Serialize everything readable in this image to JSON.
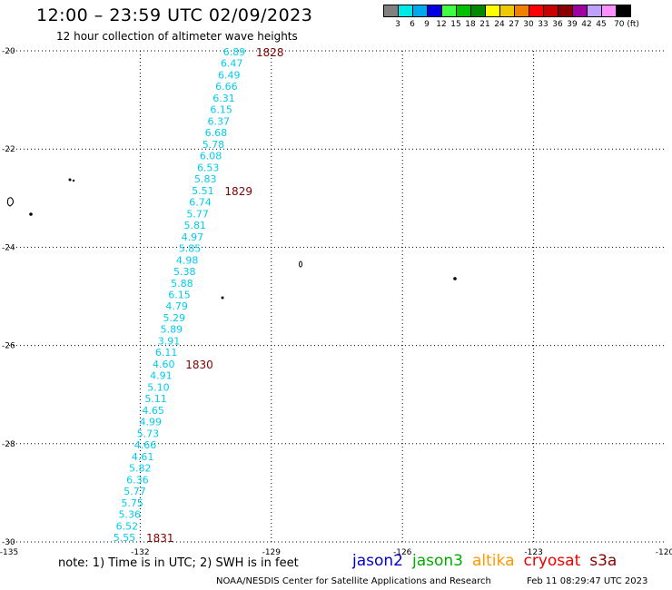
{
  "header": {
    "title": "12:00 – 23:59 UTC 02/09/2023",
    "subtitle": "12 hour collection of altimeter wave heights"
  },
  "colorbar": {
    "colors": [
      "#808080",
      "#00e8e8",
      "#00a8f0",
      "#0000e0",
      "#40ff40",
      "#00c000",
      "#008800",
      "#ffff00",
      "#f0c800",
      "#f08000",
      "#ff0000",
      "#c80000",
      "#880000",
      "#a000a0",
      "#c0a0ff",
      "#ff90ff",
      "#000000"
    ],
    "labels": [
      "3",
      "6",
      "9",
      "12",
      "15",
      "18",
      "21",
      "24",
      "27",
      "30",
      "33",
      "36",
      "39",
      "42",
      "45",
      "70 (ft)"
    ]
  },
  "map": {
    "lon_range": [
      -135,
      -120
    ],
    "lat_range": [
      -30,
      -20
    ],
    "lon_ticks": [
      "-135",
      "-132",
      "-129",
      "-126",
      "-123",
      "-120"
    ],
    "lat_ticks": [
      "-20",
      "-22",
      "-24",
      "-26",
      "-28",
      "-30"
    ],
    "grid": "dotted",
    "track_color": "#00ccee",
    "swh_values": [
      "6.89",
      "6.47",
      "6.49",
      "6.66",
      "6.31",
      "6.15",
      "6.37",
      "6.68",
      "5.78",
      "6.08",
      "6.53",
      "5.83",
      "5.51",
      "6.74",
      "5.77",
      "5.81",
      "4.97",
      "5.85",
      "4.98",
      "5.38",
      "5.88",
      "6.15",
      "4.79",
      "5.29",
      "5.89",
      "3.91",
      "6.11",
      "4.60",
      "4.91",
      "5.10",
      "5.11",
      "4.65",
      "4.99",
      "5.73",
      "4.66",
      "4.61",
      "5.82",
      "6.36",
      "5.77",
      "5.75",
      "5.36",
      "6.52",
      "5.55"
    ],
    "time_labels": [
      {
        "text": "1828",
        "index": 0
      },
      {
        "text": "1829",
        "index": 12
      },
      {
        "text": "1830",
        "index": 27
      },
      {
        "text": "1831",
        "index": 42
      }
    ],
    "time_color": "#800000"
  },
  "note": "note:  1) Time is in UTC;  2) SWH is in feet",
  "legend": [
    {
      "name": "jason2",
      "color": "#0000cc"
    },
    {
      "name": "jason3",
      "color": "#00aa00"
    },
    {
      "name": "altika",
      "color": "#ff9900"
    },
    {
      "name": "cryosat",
      "color": "#ee0000"
    },
    {
      "name": "s3a",
      "color": "#880000"
    }
  ],
  "footer": {
    "credit": "NOAA/NESDIS Center for Satellite Applications and Research",
    "timestamp": "Feb 11 08:29:47 UTC 2023"
  }
}
